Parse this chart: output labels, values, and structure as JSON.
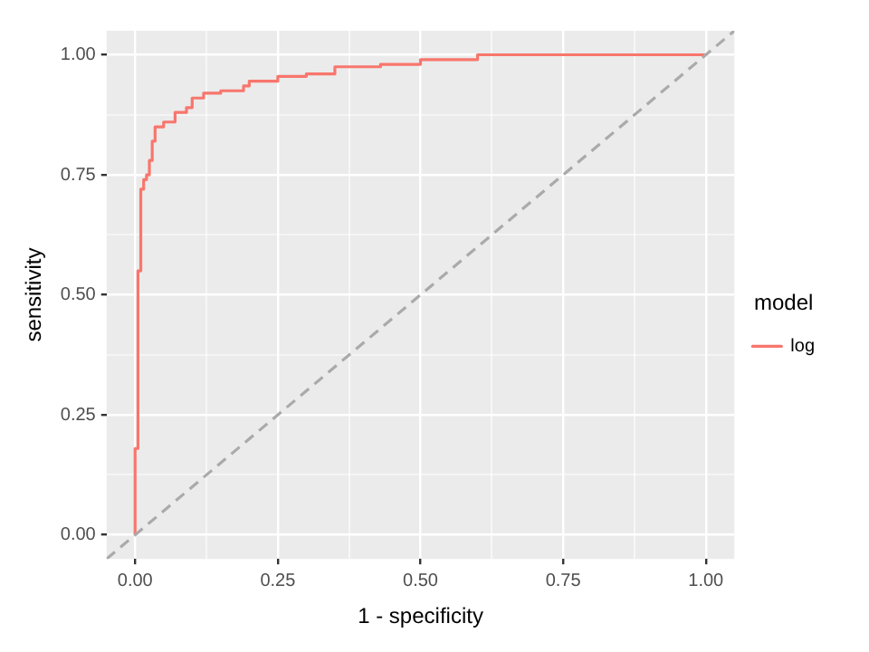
{
  "chart_data": {
    "type": "line",
    "xlabel": "1 - specificity",
    "ylabel": "sensitivity",
    "legend_title": "model",
    "legend": "right",
    "grid": true,
    "line_style": "solid",
    "marker": "none",
    "xlim": [
      -0.05,
      1.05
    ],
    "ylim": [
      -0.05,
      1.05
    ],
    "xticks": [
      {
        "value": 0,
        "label": "0.00"
      },
      {
        "value": 0.125,
        "label": null
      },
      {
        "value": 0.25,
        "label": "0.25"
      },
      {
        "value": 0.375,
        "label": null
      },
      {
        "value": 0.5,
        "label": "0.50"
      },
      {
        "value": 0.625,
        "label": null
      },
      {
        "value": 0.75,
        "label": "0.75"
      },
      {
        "value": 0.875,
        "label": null
      },
      {
        "value": 1,
        "label": "1.00"
      }
    ],
    "yticks": [
      {
        "value": 0,
        "label": "0.00"
      },
      {
        "value": 0.125,
        "label": null
      },
      {
        "value": 0.25,
        "label": "0.25"
      },
      {
        "value": 0.375,
        "label": null
      },
      {
        "value": 0.5,
        "label": "0.50"
      },
      {
        "value": 0.625,
        "label": null
      },
      {
        "value": 0.75,
        "label": "0.75"
      },
      {
        "value": 0.875,
        "label": null
      },
      {
        "value": 1,
        "label": "1.00"
      }
    ],
    "series": [
      {
        "type": "line",
        "line_style": "dashed",
        "color": "#aaaaaa",
        "x": [
          -0.05,
          1.05
        ],
        "values": [
          -0.05,
          1.05
        ]
      },
      {
        "type": "step",
        "name": "log",
        "color": "#f8766d",
        "x": [
          0,
          0,
          0.005,
          0.005,
          0.01,
          0.01,
          0.015,
          0.015,
          0.02,
          0.02,
          0.025,
          0.025,
          0.03,
          0.03,
          0.035,
          0.035,
          0.05,
          0.07,
          0.09,
          0.1,
          0.12,
          0.15,
          0.19,
          0.2,
          0.25,
          0.3,
          0.35,
          0.43,
          0.5,
          0.6,
          0.65,
          1
        ],
        "values": [
          0,
          0.18,
          0.18,
          0.55,
          0.55,
          0.72,
          0.72,
          0.74,
          0.74,
          0.75,
          0.75,
          0.78,
          0.78,
          0.82,
          0.82,
          0.84,
          0.85,
          0.86,
          0.88,
          0.89,
          0.91,
          0.92,
          0.925,
          0.935,
          0.945,
          0.955,
          0.96,
          0.975,
          0.98,
          0.99,
          1,
          1
        ]
      }
    ]
  }
}
